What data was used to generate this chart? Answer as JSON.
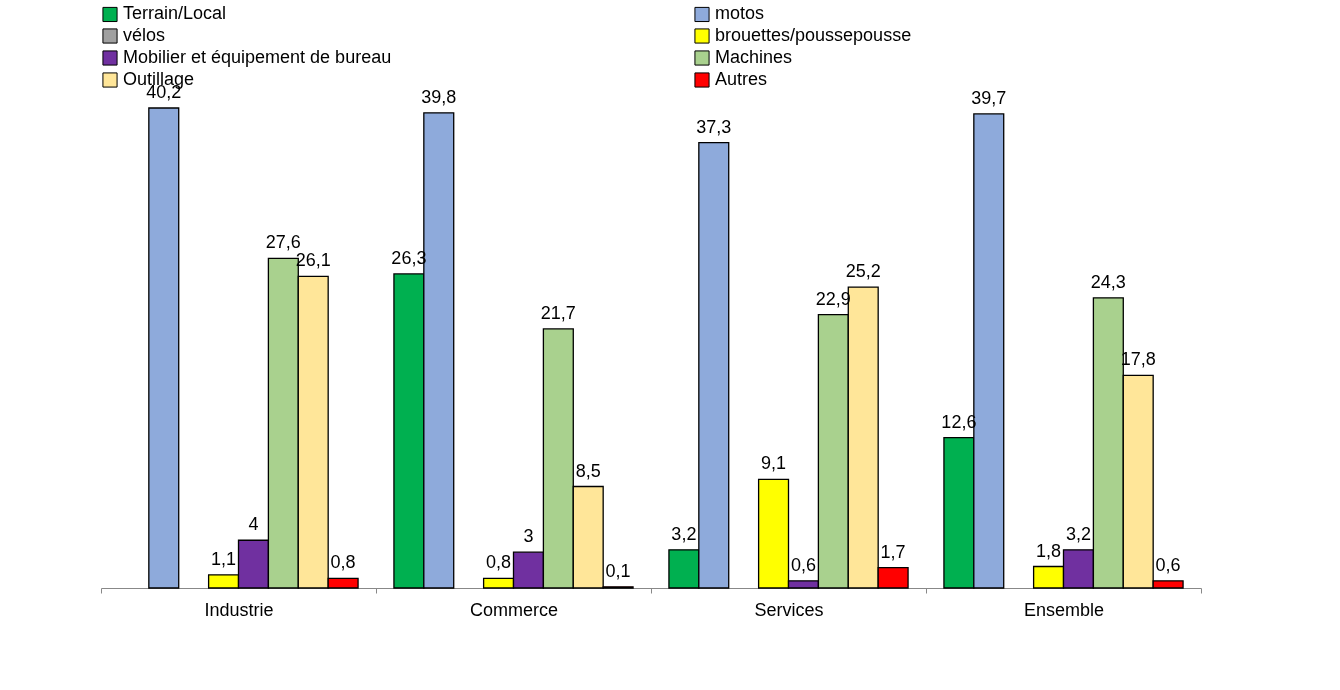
{
  "chart_data": {
    "type": "bar",
    "categories": [
      "Industrie",
      "Commerce",
      "Services",
      "Ensemble"
    ],
    "series": [
      {
        "name": "Terrain/Local",
        "color": "#00b050",
        "values": [
          null,
          26.3,
          3.2,
          12.6
        ],
        "value_labels": [
          null,
          "26,3",
          "3,2",
          "12,6"
        ]
      },
      {
        "name": "motos",
        "color": "#8eaadb",
        "values": [
          40.2,
          39.8,
          37.3,
          39.7
        ],
        "value_labels": [
          "40,2",
          "39,8",
          "37,3",
          "39,7"
        ]
      },
      {
        "name": "vélos",
        "color": "#a0a0a0",
        "values": [
          null,
          null,
          null,
          null
        ],
        "value_labels": [
          null,
          null,
          null,
          null
        ]
      },
      {
        "name": "brouettes/poussepousse",
        "color": "#ffff00",
        "values": [
          1.1,
          0.8,
          9.1,
          1.8
        ],
        "value_labels": [
          "1,1",
          "0,8",
          "9,1",
          "1,8"
        ]
      },
      {
        "name": "Mobilier et équipement de bureau",
        "color": "#7030a0",
        "values": [
          4,
          3,
          0.6,
          3.2
        ],
        "value_labels": [
          "4",
          "3",
          "0,6",
          "3,2"
        ]
      },
      {
        "name": "Machines",
        "color": "#a9d18e",
        "values": [
          27.6,
          21.7,
          22.9,
          24.3
        ],
        "value_labels": [
          "27,6",
          "21,7",
          "22,9",
          "24,3"
        ]
      },
      {
        "name": "Outillage",
        "color": "#ffe699",
        "values": [
          26.1,
          8.5,
          25.2,
          17.8
        ],
        "value_labels": [
          "26,1",
          "8,5",
          "25,2",
          "17,8"
        ]
      },
      {
        "name": "Autres",
        "color": "#ff0000",
        "values": [
          0.8,
          0.1,
          1.7,
          0.6
        ],
        "value_labels": [
          "0,8",
          "0,1",
          "1,7",
          "0,6"
        ]
      }
    ],
    "legend": "top",
    "grid": false
  }
}
